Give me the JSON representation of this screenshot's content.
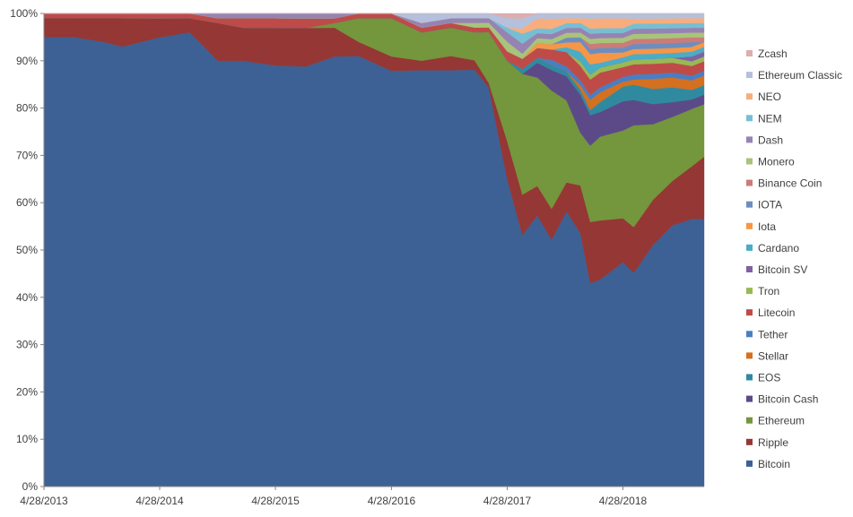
{
  "chart_data": {
    "type": "area",
    "stacked": true,
    "percent": true,
    "x_ticks": [
      "4/28/2013",
      "4/28/2014",
      "4/28/2015",
      "4/28/2016",
      "4/28/2017",
      "4/28/2018"
    ],
    "y_ticks": [
      "0%",
      "10%",
      "20%",
      "30%",
      "40%",
      "50%",
      "60%",
      "70%",
      "80%",
      "90%",
      "100%"
    ],
    "ylim": [
      0,
      100
    ],
    "grid": false,
    "legend_position": "right",
    "x": [
      "2013-04-28",
      "2013-08-01",
      "2013-11-01",
      "2014-01-01",
      "2014-04-28",
      "2014-08-01",
      "2014-10-28",
      "2015-01-15",
      "2015-04-28",
      "2015-08-01",
      "2015-11-01",
      "2016-01-15",
      "2016-04-28",
      "2016-08-01",
      "2016-11-01",
      "2017-01-15",
      "2017-03-01",
      "2017-04-28",
      "2017-06-15",
      "2017-08-01",
      "2017-09-15",
      "2017-11-01",
      "2017-12-15",
      "2018-01-15",
      "2018-02-15",
      "2018-04-28",
      "2018-06-01",
      "2018-08-01",
      "2018-10-01",
      "2018-12-01",
      "2019-01-31"
    ],
    "series": [
      {
        "name": "Bitcoin",
        "color": "#3d6194",
        "values": [
          95,
          95,
          94,
          93,
          94,
          96,
          90,
          90,
          89,
          87,
          90,
          91,
          87,
          88,
          88,
          89,
          86,
          65,
          50,
          55,
          48,
          57,
          53,
          40,
          42,
          46,
          42,
          48,
          53,
          56,
          56
        ]
      },
      {
        "name": "Ripple",
        "color": "#953735",
        "values": [
          4,
          4,
          5,
          6,
          4,
          3,
          8,
          7,
          8,
          8,
          6,
          3,
          3,
          2,
          3,
          2,
          1,
          8,
          8,
          6,
          6,
          6,
          10,
          12,
          12,
          9,
          9,
          9,
          9,
          11,
          13
        ]
      },
      {
        "name": "Ethereum",
        "color": "#74963c",
        "values": [
          0,
          0,
          0,
          0,
          0,
          0,
          0,
          0,
          0,
          0,
          1,
          5,
          8,
          6,
          6,
          6,
          11,
          17,
          24,
          22,
          23,
          17,
          11,
          15,
          17,
          18,
          20,
          15,
          13,
          12,
          11
        ]
      },
      {
        "name": "Bitcoin Cash",
        "color": "#5c4a88",
        "values": [
          0,
          0,
          0,
          0,
          0,
          0,
          0,
          0,
          0,
          0,
          0,
          0,
          0,
          0,
          0,
          0,
          0,
          0,
          0,
          3,
          4,
          5,
          8,
          6,
          5,
          6,
          5,
          4,
          3,
          2,
          2
        ]
      },
      {
        "name": "EOS",
        "color": "#2f8aa0",
        "values": [
          0,
          0,
          0,
          0,
          0,
          0,
          0,
          0,
          0,
          0,
          0,
          0,
          0,
          0,
          0,
          0,
          0,
          0,
          1,
          1,
          1,
          1,
          1,
          1,
          2,
          3,
          3,
          3,
          3,
          2,
          2
        ]
      },
      {
        "name": "Stellar",
        "color": "#d47020",
        "values": [
          0,
          0,
          0,
          0,
          0,
          0,
          0,
          0,
          0,
          0,
          0,
          0,
          0,
          0,
          0,
          0,
          0,
          0,
          0,
          0,
          0,
          0,
          1,
          2,
          2,
          1,
          1,
          2,
          2,
          2,
          2
        ]
      },
      {
        "name": "Tether",
        "color": "#4a7ec2",
        "values": [
          0,
          0,
          0,
          0,
          0,
          0,
          0,
          0,
          0,
          0,
          0,
          0,
          0,
          0,
          0,
          0,
          0,
          0,
          0,
          0,
          1,
          1,
          1,
          1,
          1,
          1,
          1,
          1,
          1,
          1,
          1
        ]
      },
      {
        "name": "Litecoin",
        "color": "#be4b48",
        "values": [
          1,
          1,
          1,
          1,
          1,
          1,
          1,
          2,
          2,
          2,
          1,
          1,
          1,
          1,
          1,
          1,
          1,
          2,
          2,
          2,
          2,
          3,
          3,
          3,
          3,
          2,
          2,
          2,
          2,
          2,
          2
        ]
      },
      {
        "name": "Tron",
        "color": "#98b954",
        "values": [
          0,
          0,
          0,
          0,
          0,
          0,
          0,
          0,
          0,
          0,
          0,
          0,
          0,
          0,
          0,
          0,
          0,
          0,
          0,
          0,
          0,
          0,
          1,
          1,
          1,
          1,
          1,
          1,
          1,
          1,
          1
        ]
      },
      {
        "name": "Bitcoin SV",
        "color": "#7e62a2",
        "values": [
          0,
          0,
          0,
          0,
          0,
          0,
          0,
          0,
          0,
          0,
          0,
          0,
          0,
          0,
          0,
          0,
          0,
          0,
          0,
          0,
          0,
          0,
          0,
          0,
          0,
          0,
          0,
          0,
          0,
          1,
          1
        ]
      },
      {
        "name": "Cardano",
        "color": "#4bacc6",
        "values": [
          0,
          0,
          0,
          0,
          0,
          0,
          0,
          0,
          0,
          0,
          0,
          0,
          0,
          0,
          0,
          0,
          0,
          0,
          0,
          0,
          0,
          1,
          2,
          2,
          1,
          1,
          1,
          1,
          1,
          1,
          1
        ]
      },
      {
        "name": "Iota",
        "color": "#f79646",
        "values": [
          0,
          0,
          0,
          0,
          0,
          0,
          0,
          0,
          0,
          0,
          0,
          0,
          0,
          0,
          0,
          0,
          0,
          0,
          0,
          1,
          1,
          1,
          2,
          2,
          2,
          1,
          1,
          1,
          1,
          1,
          1
        ]
      },
      {
        "name": "IOTA",
        "color": "#6c8ebf",
        "values": [
          0,
          0,
          0,
          0,
          0,
          0,
          0,
          0,
          0,
          0,
          0,
          0,
          0,
          0,
          0,
          0,
          0,
          0,
          0,
          0,
          0,
          1,
          1,
          1,
          1,
          1,
          1,
          1,
          1,
          1,
          0
        ]
      },
      {
        "name": "Binance Coin",
        "color": "#cc7b79",
        "values": [
          0,
          0,
          0,
          0,
          0,
          0,
          0,
          0,
          0,
          0,
          0,
          0,
          0,
          0,
          0,
          0,
          0,
          0,
          0,
          0,
          0,
          0,
          0,
          1,
          1,
          1,
          1,
          1,
          1,
          1,
          1
        ]
      },
      {
        "name": "Monero",
        "color": "#a8c47a",
        "values": [
          0,
          0,
          0,
          0,
          0,
          0,
          0,
          0,
          0,
          0,
          0,
          0,
          0,
          0,
          0,
          1,
          1,
          2,
          1,
          1,
          1,
          1,
          1,
          1,
          1,
          1,
          1,
          1,
          1,
          1,
          1
        ]
      },
      {
        "name": "Dash",
        "color": "#9683b2",
        "values": [
          0,
          0,
          0,
          0,
          0,
          0,
          1,
          1,
          1,
          1,
          1,
          0,
          0,
          1,
          1,
          1,
          1,
          2,
          2,
          1,
          1,
          1,
          1,
          1,
          1,
          1,
          1,
          1,
          1,
          1,
          1
        ]
      },
      {
        "name": "NEM",
        "color": "#78bed3",
        "values": [
          0,
          0,
          0,
          0,
          0,
          0,
          0,
          0,
          0,
          0,
          0,
          0,
          0,
          0,
          0,
          0,
          0,
          1,
          2,
          1,
          1,
          1,
          1,
          1,
          1,
          1,
          1,
          1,
          1,
          1,
          1
        ]
      },
      {
        "name": "NEO",
        "color": "#f9ad7c",
        "values": [
          0,
          0,
          0,
          0,
          0,
          0,
          0,
          0,
          0,
          0,
          0,
          0,
          0,
          0,
          0,
          0,
          0,
          0,
          1,
          2,
          2,
          1,
          1,
          2,
          2,
          2,
          1,
          1,
          1,
          1,
          1
        ]
      },
      {
        "name": "Ethereum Classic",
        "color": "#b4c0dc",
        "values": [
          0,
          0,
          0,
          0,
          0,
          0,
          0,
          0,
          0,
          0,
          0,
          0,
          0,
          2,
          1,
          1,
          1,
          2,
          2,
          1,
          1,
          1,
          1,
          1,
          1,
          1,
          1,
          1,
          1,
          1,
          1
        ]
      },
      {
        "name": "Zcash",
        "color": "#ddaeae",
        "values": [
          0,
          0,
          0,
          0,
          0,
          0,
          0,
          0,
          0,
          0,
          0,
          0,
          0,
          0,
          0,
          0,
          0,
          1,
          1,
          0,
          0,
          0,
          0,
          0,
          0,
          0,
          0,
          0,
          0,
          0,
          0
        ]
      }
    ]
  }
}
